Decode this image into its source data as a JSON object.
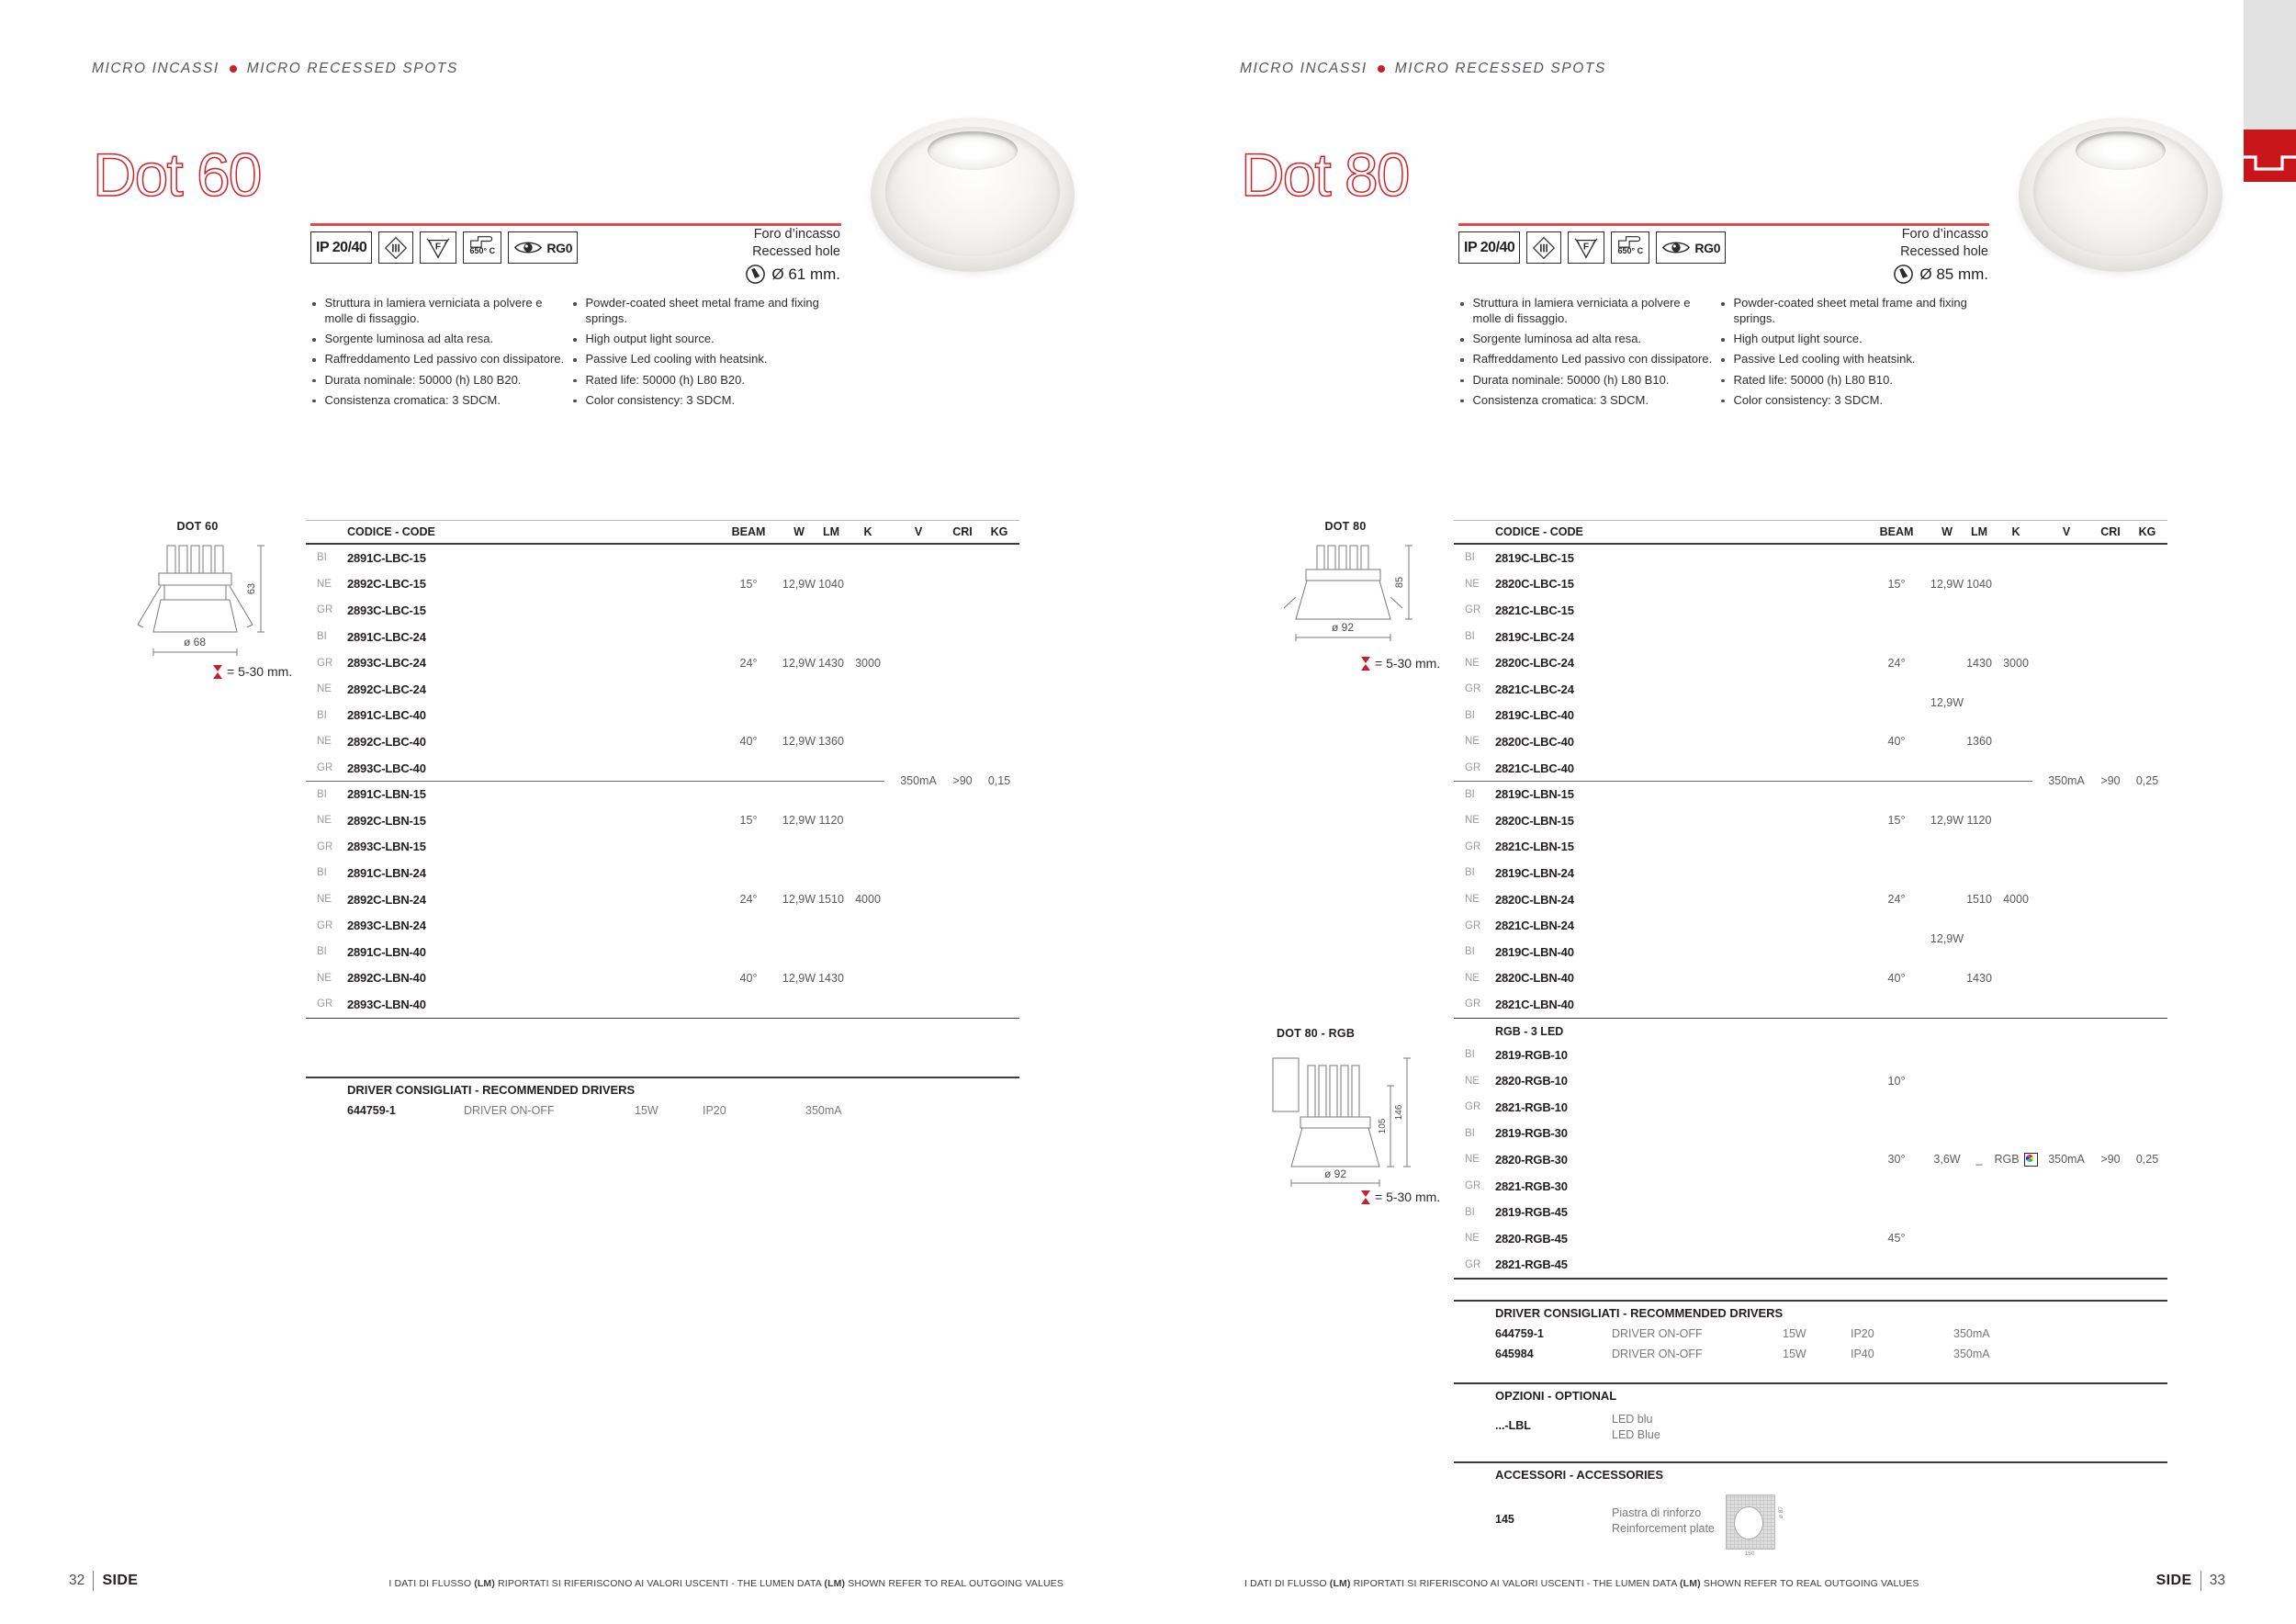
{
  "colors": {
    "accent_red": "#c8202a",
    "rule_red": "#e4474d",
    "text_dark": "#231f20",
    "text_gray": "#595a5c",
    "finish_gray": "#9b9b9d",
    "strip_gray": "#e2e2e3"
  },
  "footer": {
    "note": "I DATI DI FLUSSO (LM) RIPORTATI SI RIFERISCONO AI VALORI USCENTI - THE LUMEN DATA (LM) SHOWN REFER TO REAL OUTGOING VALUES",
    "left_page_number": "32",
    "right_page_number": "33",
    "brand": "SIDE"
  },
  "pages": [
    {
      "section_it": "MICRO INCASSI",
      "section_en": "MICRO RECESSED SPOTS",
      "title": "Dot 60",
      "certs": {
        "ip": "IP 20/40",
        "glow": "650° C",
        "photobio": "RG0"
      },
      "recessed_hole": {
        "it": "Foro d’incasso",
        "en": "Recessed hole",
        "diameter": "Ø 61 mm."
      },
      "features_it": [
        [
          "Struttura in lamiera verniciata a polvere e",
          "molle di fissaggio."
        ],
        [
          "Sorgente luminosa ad alta resa."
        ],
        [
          "Raffreddamento Led passivo con dissipatore."
        ],
        [
          "Durata nominale: 50000 (h) L80 B20."
        ],
        [
          "Consistenza cromatica: 3 SDCM."
        ]
      ],
      "features_en": [
        [
          "Powder-coated sheet metal frame and fixing",
          "springs."
        ],
        [
          "High output light source."
        ],
        [
          "Passive Led cooling with heatsink."
        ],
        [
          "Rated life: 50000 (h) L80 B20."
        ],
        [
          "Color consistency: 3 SDCM."
        ]
      ],
      "diagram": {
        "label": "DOT 60",
        "height": "63",
        "diameter": "ø 68",
        "adjust": "= 5-30 mm."
      },
      "table": {
        "headers": [
          "CODICE - CODE",
          "BEAM",
          "W",
          "LM",
          "K",
          "V",
          "CRI",
          "KG"
        ],
        "sections": [
          {
            "rows": [
              {
                "finish": "BI",
                "code": "2891C-LBC-15"
              },
              {
                "finish": "NE",
                "code": "2892C-LBC-15",
                "beam": "15°",
                "w": "12,9W",
                "lm": "1040"
              },
              {
                "finish": "GR",
                "code": "2893C-LBC-15"
              },
              {
                "finish": "BI",
                "code": "2891C-LBC-24"
              },
              {
                "finish": "GR",
                "code": "2893C-LBC-24",
                "beam": "24°",
                "w": "12,9W",
                "lm": "1430",
                "k": "3000"
              },
              {
                "finish": "NE",
                "code": "2892C-LBC-24"
              },
              {
                "finish": "BI",
                "code": "2891C-LBC-40"
              },
              {
                "finish": "NE",
                "code": "2892C-LBC-40",
                "beam": "40°",
                "w": "12,9W",
                "lm": "1360"
              },
              {
                "finish": "GR",
                "code": "2893C-LBC-40"
              }
            ]
          },
          {
            "rows": [
              {
                "finish": "BI",
                "code": "2891C-LBN-15"
              },
              {
                "finish": "NE",
                "code": "2892C-LBN-15",
                "beam": "15°",
                "w": "12,9W",
                "lm": "1120"
              },
              {
                "finish": "GR",
                "code": "2893C-LBN-15"
              },
              {
                "finish": "BI",
                "code": "2891C-LBN-24"
              },
              {
                "finish": "NE",
                "code": "2892C-LBN-24",
                "beam": "24°",
                "w": "12,9W",
                "lm": "1510",
                "k": "4000"
              },
              {
                "finish": "GR",
                "code": "2893C-LBN-24"
              },
              {
                "finish": "BI",
                "code": "2891C-LBN-40"
              },
              {
                "finish": "NE",
                "code": "2892C-LBN-40",
                "beam": "40°",
                "w": "12,9W",
                "lm": "1430"
              },
              {
                "finish": "GR",
                "code": "2893C-LBN-40"
              }
            ]
          }
        ],
        "divider_values": {
          "v": "350mA",
          "cri": ">90",
          "kg": "0,15"
        }
      },
      "drivers": {
        "heading": "DRIVER CONSIGLIATI - RECOMMENDED DRIVERS",
        "rows": [
          {
            "code": "644759-1",
            "type": "DRIVER ON-OFF",
            "w": "15W",
            "ip": "IP20",
            "ma": "350mA"
          }
        ]
      }
    },
    {
      "section_it": "MICRO INCASSI",
      "section_en": "MICRO RECESSED SPOTS",
      "title": "Dot 80",
      "certs": {
        "ip": "IP 20/40",
        "glow": "650° C",
        "photobio": "RG0"
      },
      "recessed_hole": {
        "it": "Foro d’incasso",
        "en": "Recessed hole",
        "diameter": "Ø 85 mm."
      },
      "features_it": [
        [
          "Struttura in lamiera verniciata a polvere e",
          "molle di fissaggio."
        ],
        [
          "Sorgente luminosa ad alta resa."
        ],
        [
          "Raffreddamento Led passivo con dissipatore."
        ],
        [
          "Durata nominale: 50000 (h) L80 B10."
        ],
        [
          "Consistenza cromatica: 3 SDCM."
        ]
      ],
      "features_en": [
        [
          "Powder-coated sheet metal frame and fixing",
          "springs."
        ],
        [
          "High output light source."
        ],
        [
          "Passive Led cooling with heatsink."
        ],
        [
          "Rated life: 50000 (h) L80 B10."
        ],
        [
          "Color consistency: 3 SDCM."
        ]
      ],
      "diagram": {
        "label": "DOT 80",
        "height": "85",
        "diameter": "ø 92",
        "adjust": "= 5-30 mm."
      },
      "diagram_rgb": {
        "label": "DOT 80 - RGB",
        "height_inner": "105",
        "height_outer": "146",
        "diameter": "ø 92",
        "adjust": "= 5-30 mm."
      },
      "table": {
        "headers": [
          "CODICE - CODE",
          "BEAM",
          "W",
          "LM",
          "K",
          "V",
          "CRI",
          "KG"
        ],
        "sections": [
          {
            "w_span": "12,9W",
            "rows": [
              {
                "finish": "BI",
                "code": "2819C-LBC-15"
              },
              {
                "finish": "NE",
                "code": "2820C-LBC-15",
                "beam": "15°",
                "w": "12,9W",
                "lm": "1040"
              },
              {
                "finish": "GR",
                "code": "2821C-LBC-15"
              },
              {
                "finish": "BI",
                "code": "2819C-LBC-24"
              },
              {
                "finish": "NE",
                "code": "2820C-LBC-24",
                "beam": "24°",
                "lm": "1430",
                "k": "3000"
              },
              {
                "finish": "GR",
                "code": "2821C-LBC-24"
              },
              {
                "finish": "BI",
                "code": "2819C-LBC-40"
              },
              {
                "finish": "NE",
                "code": "2820C-LBC-40",
                "beam": "40°",
                "lm": "1360"
              },
              {
                "finish": "GR",
                "code": "2821C-LBC-40"
              }
            ]
          },
          {
            "w_span": "12,9W",
            "rows": [
              {
                "finish": "BI",
                "code": "2819C-LBN-15"
              },
              {
                "finish": "NE",
                "code": "2820C-LBN-15",
                "beam": "15°",
                "w": "12,9W",
                "lm": "1120"
              },
              {
                "finish": "GR",
                "code": "2821C-LBN-15"
              },
              {
                "finish": "BI",
                "code": "2819C-LBN-24"
              },
              {
                "finish": "NE",
                "code": "2820C-LBN-24",
                "beam": "24°",
                "lm": "1510",
                "k": "4000"
              },
              {
                "finish": "GR",
                "code": "2821C-LBN-24"
              },
              {
                "finish": "BI",
                "code": "2819C-LBN-40"
              },
              {
                "finish": "NE",
                "code": "2820C-LBN-40",
                "beam": "40°",
                "lm": "1430"
              },
              {
                "finish": "GR",
                "code": "2821C-LBN-40"
              }
            ]
          },
          {
            "heading": "RGB - 3 LED",
            "rows": [
              {
                "finish": "BI",
                "code": "2819-RGB-10"
              },
              {
                "finish": "NE",
                "code": "2820-RGB-10",
                "beam": "10°"
              },
              {
                "finish": "GR",
                "code": "2821-RGB-10"
              },
              {
                "finish": "BI",
                "code": "2819-RGB-30"
              },
              {
                "finish": "NE",
                "code": "2820-RGB-30",
                "beam": "30°",
                "w": "3,6W",
                "lm": "_",
                "k": "RGB",
                "rgb_icon": true,
                "v": "350mA",
                "cri": ">90",
                "kg": "0,25"
              },
              {
                "finish": "GR",
                "code": "2821-RGB-30"
              },
              {
                "finish": "BI",
                "code": "2819-RGB-45"
              },
              {
                "finish": "NE",
                "code": "2820-RGB-45",
                "beam": "45°"
              },
              {
                "finish": "GR",
                "code": "2821-RGB-45"
              }
            ]
          }
        ],
        "divider_values": {
          "v": "350mA",
          "cri": ">90",
          "kg": "0,25"
        }
      },
      "drivers": {
        "heading": "DRIVER CONSIGLIATI - RECOMMENDED DRIVERS",
        "rows": [
          {
            "code": "644759-1",
            "type": "DRIVER ON-OFF",
            "w": "15W",
            "ip": "IP20",
            "ma": "350mA"
          },
          {
            "code": "645984",
            "type": "DRIVER ON-OFF",
            "w": "15W",
            "ip": "IP40",
            "ma": "350mA"
          }
        ]
      },
      "options": {
        "heading": "OPZIONI - OPTIONAL",
        "rows": [
          {
            "code": "...-LBL",
            "desc_it": "LED blu",
            "desc_en": "LED Blue"
          }
        ]
      },
      "accessories": {
        "heading": "ACCESSORI - ACCESSORIES",
        "rows": [
          {
            "code": "145",
            "desc_it": "Piastra di rinforzo",
            "desc_en": "Reinforcement plate",
            "img_width_label": "150",
            "img_hole_label": "ø 87"
          }
        ]
      }
    }
  ]
}
